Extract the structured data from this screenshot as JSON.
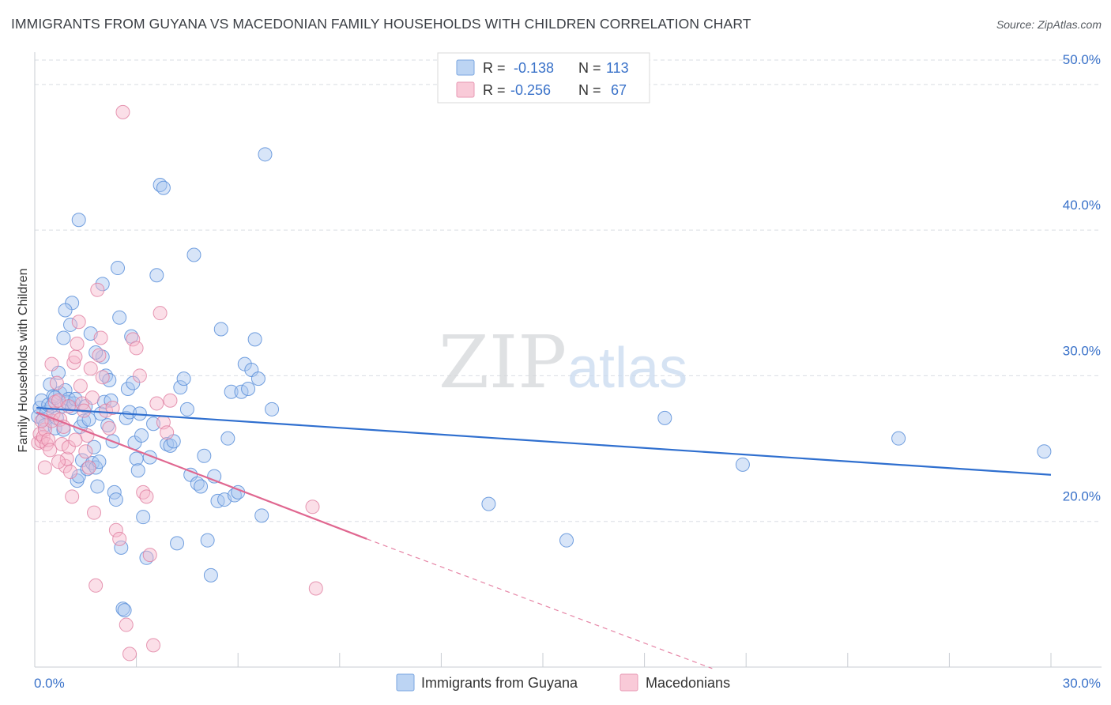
{
  "header": {
    "title": "IMMIGRANTS FROM GUYANA VS MACEDONIAN FAMILY HOUSEHOLDS WITH CHILDREN CORRELATION CHART",
    "source": "Source: ZipAtlas.com"
  },
  "watermark": {
    "zip": "ZIP",
    "atlas": "atlas"
  },
  "colors": {
    "blue": "#5b8fd9",
    "blue_fill": "#a9c6ef",
    "blue_line": "#2f6fcf",
    "pink": "#e07ea0",
    "pink_fill": "#f6b8cb",
    "pink_line": "#e06790",
    "grid": "#d9dde3",
    "tick_label": "#3a72c9"
  },
  "legend": {
    "series": [
      {
        "r_label": "R =",
        "r_value": "-0.138",
        "n_label": "N =",
        "n_value": "113"
      },
      {
        "r_label": "R =",
        "r_value": "-0.256",
        "n_label": "N =",
        "n_value": "67"
      }
    ]
  },
  "chart_data": {
    "type": "scatter",
    "title": "IMMIGRANTS FROM GUYANA VS MACEDONIAN FAMILY HOUSEHOLDS WITH CHILDREN CORRELATION CHART",
    "xlabel": "",
    "ylabel": "Family Households with Children",
    "xlim": [
      0,
      30
    ],
    "ylim": [
      10,
      52
    ],
    "x_tick_labels": [
      "0.0%",
      "30.0%"
    ],
    "y_ticks": [
      20,
      30,
      40,
      50
    ],
    "y_tick_labels": [
      "20.0%",
      "30.0%",
      "40.0%",
      "50.0%"
    ],
    "legend_position": "top-center",
    "series": [
      {
        "name": "Immigrants from Guyana",
        "R": -0.138,
        "N": 113,
        "trend": {
          "x": [
            0.05,
            30
          ],
          "y": [
            27.8,
            23.2
          ]
        },
        "points": [
          [
            0.1,
            27.2
          ],
          [
            0.15,
            27.8
          ],
          [
            0.2,
            28.3
          ],
          [
            0.25,
            27.0
          ],
          [
            0.3,
            26.6
          ],
          [
            0.35,
            27.5
          ],
          [
            0.4,
            28.0
          ],
          [
            0.45,
            29.4
          ],
          [
            0.5,
            27.9
          ],
          [
            0.55,
            28.6
          ],
          [
            0.6,
            26.4
          ],
          [
            0.65,
            27.1
          ],
          [
            0.7,
            30.2
          ],
          [
            0.75,
            28.8
          ],
          [
            0.8,
            27.9
          ],
          [
            0.85,
            26.3
          ],
          [
            0.9,
            29.0
          ],
          [
            0.95,
            28.2
          ],
          [
            1.0,
            28.4
          ],
          [
            1.05,
            33.5
          ],
          [
            1.1,
            27.8
          ],
          [
            1.15,
            28.1
          ],
          [
            1.2,
            28.4
          ],
          [
            1.25,
            22.8
          ],
          [
            1.3,
            23.1
          ],
          [
            1.35,
            26.5
          ],
          [
            1.4,
            24.2
          ],
          [
            1.45,
            26.9
          ],
          [
            1.5,
            27.9
          ],
          [
            1.55,
            23.6
          ],
          [
            1.6,
            27.0
          ],
          [
            1.65,
            32.9
          ],
          [
            1.7,
            24.0
          ],
          [
            1.75,
            25.1
          ],
          [
            1.8,
            23.7
          ],
          [
            1.85,
            22.4
          ],
          [
            1.9,
            24.1
          ],
          [
            1.95,
            27.4
          ],
          [
            2.0,
            31.3
          ],
          [
            2.05,
            28.2
          ],
          [
            2.1,
            30.0
          ],
          [
            2.15,
            26.6
          ],
          [
            2.2,
            29.7
          ],
          [
            2.25,
            28.3
          ],
          [
            2.3,
            25.5
          ],
          [
            2.35,
            22.0
          ],
          [
            2.4,
            21.5
          ],
          [
            2.45,
            37.4
          ],
          [
            2.5,
            34.0
          ],
          [
            2.55,
            18.2
          ],
          [
            2.6,
            14.0
          ],
          [
            2.65,
            13.9
          ],
          [
            2.7,
            27.1
          ],
          [
            2.75,
            29.1
          ],
          [
            2.8,
            27.5
          ],
          [
            2.85,
            32.7
          ],
          [
            2.9,
            29.5
          ],
          [
            2.95,
            25.4
          ],
          [
            3.0,
            24.3
          ],
          [
            3.05,
            23.5
          ],
          [
            3.1,
            27.4
          ],
          [
            3.15,
            25.9
          ],
          [
            3.2,
            20.3
          ],
          [
            3.3,
            17.5
          ],
          [
            3.4,
            24.4
          ],
          [
            3.5,
            26.7
          ],
          [
            3.6,
            36.9
          ],
          [
            3.7,
            43.1
          ],
          [
            3.8,
            42.9
          ],
          [
            3.9,
            25.3
          ],
          [
            4.0,
            25.2
          ],
          [
            4.1,
            25.5
          ],
          [
            4.2,
            18.5
          ],
          [
            4.3,
            29.2
          ],
          [
            4.4,
            29.8
          ],
          [
            4.5,
            27.7
          ],
          [
            4.6,
            23.2
          ],
          [
            4.7,
            38.3
          ],
          [
            4.8,
            22.6
          ],
          [
            4.9,
            22.4
          ],
          [
            5.0,
            24.5
          ],
          [
            5.1,
            18.7
          ],
          [
            5.2,
            16.3
          ],
          [
            5.3,
            23.1
          ],
          [
            5.4,
            21.4
          ],
          [
            5.5,
            33.2
          ],
          [
            5.6,
            21.5
          ],
          [
            5.7,
            25.7
          ],
          [
            5.8,
            28.9
          ],
          [
            5.9,
            21.8
          ],
          [
            6.0,
            22.0
          ],
          [
            6.1,
            28.9
          ],
          [
            6.2,
            30.8
          ],
          [
            6.3,
            29.1
          ],
          [
            6.4,
            30.4
          ],
          [
            6.5,
            32.5
          ],
          [
            6.6,
            29.8
          ],
          [
            6.7,
            20.4
          ],
          [
            6.8,
            45.2
          ],
          [
            7.0,
            27.7
          ],
          [
            1.3,
            40.7
          ],
          [
            1.8,
            31.6
          ],
          [
            2.0,
            36.3
          ],
          [
            1.1,
            35.0
          ],
          [
            0.9,
            34.5
          ],
          [
            0.85,
            32.6
          ],
          [
            13.4,
            21.2
          ],
          [
            15.7,
            18.7
          ],
          [
            18.6,
            27.1
          ],
          [
            20.9,
            23.9
          ],
          [
            25.5,
            25.7
          ],
          [
            29.8,
            24.8
          ],
          [
            0.6,
            28.5
          ]
        ]
      },
      {
        "name": "Macedonians",
        "R": -0.256,
        "N": 67,
        "trend": {
          "x": [
            0.05,
            9.8
          ],
          "y": [
            27.5,
            18.8
          ]
        },
        "trend_dashed": {
          "x": [
            9.8,
            20.0
          ],
          "y": [
            18.8,
            9.9
          ]
        },
        "points": [
          [
            0.1,
            25.4
          ],
          [
            0.15,
            26.0
          ],
          [
            0.2,
            25.5
          ],
          [
            0.25,
            25.8
          ],
          [
            0.3,
            26.3
          ],
          [
            0.35,
            25.3
          ],
          [
            0.4,
            25.6
          ],
          [
            0.45,
            24.9
          ],
          [
            0.5,
            26.9
          ],
          [
            0.55,
            27.4
          ],
          [
            0.6,
            28.2
          ],
          [
            0.65,
            29.5
          ],
          [
            0.7,
            28.3
          ],
          [
            0.75,
            27.0
          ],
          [
            0.8,
            25.3
          ],
          [
            0.85,
            26.5
          ],
          [
            0.9,
            23.8
          ],
          [
            0.95,
            24.3
          ],
          [
            1.0,
            25.1
          ],
          [
            1.05,
            23.4
          ],
          [
            1.1,
            21.7
          ],
          [
            1.15,
            30.9
          ],
          [
            1.2,
            31.3
          ],
          [
            1.25,
            32.2
          ],
          [
            1.3,
            33.7
          ],
          [
            1.35,
            29.3
          ],
          [
            1.4,
            28.1
          ],
          [
            1.45,
            27.6
          ],
          [
            1.5,
            24.8
          ],
          [
            1.55,
            25.9
          ],
          [
            1.6,
            23.7
          ],
          [
            1.65,
            30.5
          ],
          [
            1.7,
            28.5
          ],
          [
            1.75,
            20.6
          ],
          [
            1.8,
            15.6
          ],
          [
            1.85,
            35.9
          ],
          [
            1.9,
            31.4
          ],
          [
            1.95,
            32.6
          ],
          [
            2.0,
            29.9
          ],
          [
            2.1,
            27.6
          ],
          [
            2.2,
            26.4
          ],
          [
            2.3,
            27.8
          ],
          [
            2.4,
            19.4
          ],
          [
            2.5,
            18.8
          ],
          [
            2.6,
            48.1
          ],
          [
            2.7,
            12.9
          ],
          [
            2.8,
            10.9
          ],
          [
            2.9,
            32.5
          ],
          [
            3.0,
            31.9
          ],
          [
            3.1,
            30.0
          ],
          [
            3.2,
            22.0
          ],
          [
            3.3,
            21.7
          ],
          [
            3.4,
            17.7
          ],
          [
            3.5,
            11.5
          ],
          [
            3.6,
            28.1
          ],
          [
            3.7,
            34.3
          ],
          [
            3.8,
            26.8
          ],
          [
            3.9,
            26.1
          ],
          [
            4.0,
            28.3
          ],
          [
            8.2,
            21.0
          ],
          [
            8.3,
            15.4
          ],
          [
            0.3,
            23.7
          ],
          [
            0.5,
            30.8
          ],
          [
            0.7,
            24.1
          ],
          [
            1.0,
            27.9
          ],
          [
            1.2,
            25.6
          ],
          [
            0.2,
            26.9
          ]
        ]
      }
    ]
  },
  "bottom_legend": {
    "items": [
      {
        "label": "Immigrants from Guyana"
      },
      {
        "label": "Macedonians"
      }
    ]
  }
}
